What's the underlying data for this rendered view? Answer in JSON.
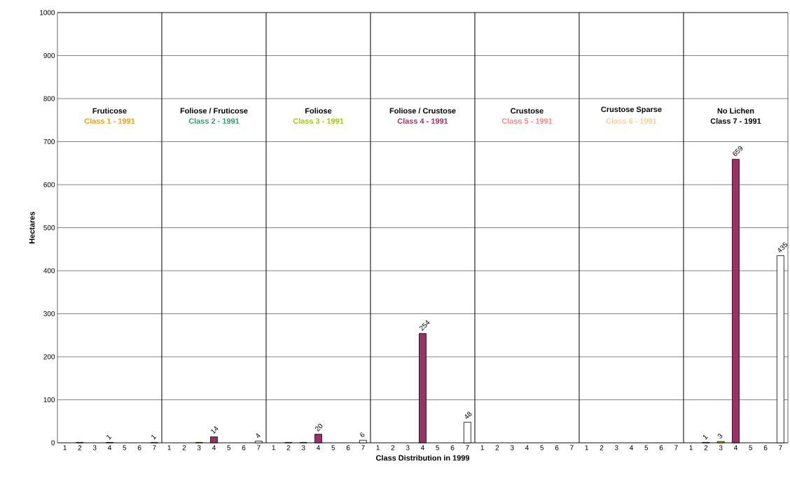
{
  "chart_data": [
    {
      "type": "bar",
      "title": "Fruticose",
      "subtitle": "Class 1 - 1991",
      "ylabel": "Hectares",
      "categories": [
        "1",
        "2",
        "3",
        "4",
        "5",
        "6",
        "7"
      ],
      "values": [
        null,
        1,
        null,
        1,
        null,
        null,
        1
      ],
      "value_labels": [
        null,
        null,
        null,
        "1",
        null,
        null,
        "1"
      ],
      "colors": [
        null,
        "#339966",
        null,
        "#993366",
        null,
        null,
        "#ffffff"
      ],
      "ylim": [
        0,
        1000
      ],
      "yticks": [
        0,
        100,
        200,
        300,
        400,
        500,
        600,
        700,
        800,
        900,
        1000
      ],
      "grid": "y"
    },
    {
      "type": "bar",
      "title": "Foliose / Fruticose",
      "subtitle": "Class 2 - 1991",
      "categories": [
        "1",
        "2",
        "3",
        "4",
        "5",
        "6",
        "7"
      ],
      "values": [
        null,
        null,
        1,
        14,
        null,
        null,
        4
      ],
      "value_labels": [
        null,
        null,
        null,
        "14",
        null,
        null,
        "4"
      ],
      "colors": [
        null,
        null,
        "#99cc00",
        "#993366",
        null,
        null,
        "#ffffff"
      ],
      "ylim": [
        0,
        1000
      ],
      "yticks": [
        0,
        100,
        200,
        300,
        400,
        500,
        600,
        700,
        800,
        900,
        1000
      ],
      "grid": "y",
      "tick_labels": "x"
    },
    {
      "type": "bar",
      "title": "Foliose",
      "subtitle": "Class 3 - 1991",
      "categories": [
        "1",
        "2",
        "3",
        "4",
        "5",
        "6",
        "7"
      ],
      "values": [
        null,
        1,
        1,
        20,
        null,
        null,
        6
      ],
      "value_labels": [
        null,
        null,
        null,
        "20",
        null,
        null,
        "6"
      ],
      "colors": [
        null,
        "#339966",
        "#99cc00",
        "#993366",
        null,
        null,
        "#ffffff"
      ],
      "ylim": [
        0,
        1000
      ],
      "yticks": [
        0,
        100,
        200,
        300,
        400,
        500,
        600,
        700,
        800,
        900,
        1000
      ],
      "grid": "y",
      "tick_labels": "x"
    },
    {
      "type": "bar",
      "title": "Foliose / Crustose",
      "subtitle": "Class 4 - 1991",
      "xlabel": "Class Distribution in 1999",
      "categories": [
        "1",
        "2",
        "3",
        "4",
        "5",
        "6",
        "7"
      ],
      "values": [
        null,
        null,
        null,
        254,
        null,
        null,
        48
      ],
      "value_labels": [
        null,
        null,
        null,
        "254",
        null,
        null,
        "48"
      ],
      "colors": [
        null,
        null,
        null,
        "#993366",
        null,
        null,
        "#ffffff"
      ],
      "ylim": [
        0,
        1000
      ],
      "yticks": [
        0,
        100,
        200,
        300,
        400,
        500,
        600,
        700,
        800,
        900,
        1000
      ],
      "grid": "y",
      "tick_labels": "x"
    },
    {
      "type": "bar",
      "title": "Crustose",
      "subtitle": "Class 5 - 1991",
      "categories": [
        "1",
        "2",
        "3",
        "4",
        "5",
        "6",
        "7"
      ],
      "values": [
        null,
        null,
        null,
        null,
        null,
        null,
        null
      ],
      "ylim": [
        0,
        1000
      ],
      "yticks": [
        0,
        100,
        200,
        300,
        400,
        500,
        600,
        700,
        800,
        900,
        1000
      ],
      "grid": "y",
      "tick_labels": "x"
    },
    {
      "type": "bar",
      "title": "Crustose Sparse",
      "subtitle": "Class 6 - 1991",
      "categories": [
        "1",
        "2",
        "3",
        "4",
        "5",
        "6",
        "7"
      ],
      "values": [
        null,
        null,
        null,
        null,
        null,
        null,
        null
      ],
      "ylim": [
        0,
        1000
      ],
      "yticks": [
        0,
        100,
        200,
        300,
        400,
        500,
        600,
        700,
        800,
        900,
        1000
      ],
      "grid": "y",
      "tick_labels": "x"
    },
    {
      "type": "bar",
      "title": "No Lichen",
      "subtitle": "Class 7 - 1991",
      "categories": [
        "1",
        "2",
        "3",
        "4",
        "5",
        "6",
        "7"
      ],
      "values": [
        null,
        1,
        3,
        659,
        null,
        null,
        435
      ],
      "value_labels": [
        null,
        "1",
        "3",
        "659",
        null,
        null,
        "435"
      ],
      "colors": [
        null,
        "#339966",
        "#99cc00",
        "#993366",
        null,
        null,
        "#ffffff"
      ],
      "ylim": [
        0,
        1000
      ],
      "yticks": [
        0,
        100,
        200,
        300,
        400,
        500,
        600,
        700,
        800,
        900,
        1000
      ],
      "grid": "y",
      "tick_labels": "x"
    }
  ]
}
